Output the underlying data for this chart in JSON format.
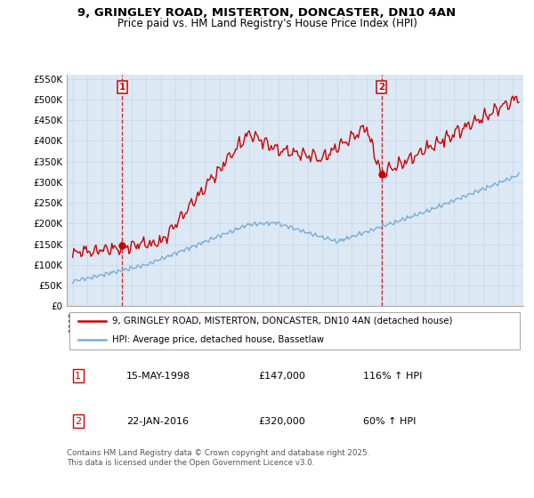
{
  "title_line1": "9, GRINGLEY ROAD, MISTERTON, DONCASTER, DN10 4AN",
  "title_line2": "Price paid vs. HM Land Registry's House Price Index (HPI)",
  "ylim": [
    0,
    560000
  ],
  "yticks": [
    0,
    50000,
    100000,
    150000,
    200000,
    250000,
    300000,
    350000,
    400000,
    450000,
    500000,
    550000
  ],
  "ytick_labels": [
    "£0",
    "£50K",
    "£100K",
    "£150K",
    "£200K",
    "£250K",
    "£300K",
    "£350K",
    "£400K",
    "£450K",
    "£500K",
    "£550K"
  ],
  "red_line_color": "#cc0000",
  "blue_line_color": "#7aadd4",
  "chart_bg_color": "#dce9f5",
  "marker1_year": 1998.37,
  "marker1_price": 147000,
  "marker1_label": "1",
  "marker1_date": "15-MAY-1998",
  "marker1_price_str": "£147,000",
  "marker1_hpi": "116% ↑ HPI",
  "marker2_year": 2016.06,
  "marker2_price": 320000,
  "marker2_label": "2",
  "marker2_date": "22-JAN-2016",
  "marker2_price_str": "£320,000",
  "marker2_hpi": "60% ↑ HPI",
  "legend_red": "9, GRINGLEY ROAD, MISTERTON, DONCASTER, DN10 4AN (detached house)",
  "legend_blue": "HPI: Average price, detached house, Bassetlaw",
  "footnote": "Contains HM Land Registry data © Crown copyright and database right 2025.\nThis data is licensed under the Open Government Licence v3.0.",
  "background_color": "#ffffff",
  "grid_color": "#c8d8e8",
  "title_fontsize": 9.5,
  "subtitle_fontsize": 8.5
}
